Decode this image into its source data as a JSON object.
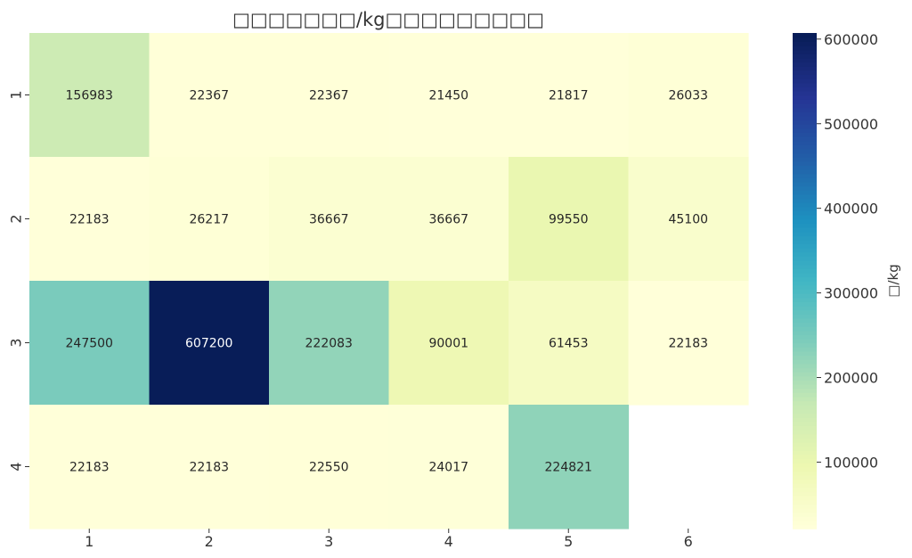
{
  "chart_data": {
    "type": "heatmap",
    "title": "□□□□□□□/kg□□□□□□□□□",
    "rows": [
      "1",
      "2",
      "3",
      "4"
    ],
    "columns": [
      "1",
      "2",
      "3",
      "4",
      "5",
      "6"
    ],
    "values": [
      [
        156983,
        22367,
        22367,
        21450,
        21817,
        26033
      ],
      [
        22183,
        26217,
        36667,
        36667,
        99550,
        45100
      ],
      [
        247500,
        607200,
        222083,
        90001,
        61453,
        22183
      ],
      [
        22183,
        22183,
        22550,
        24017,
        224821,
        null
      ]
    ],
    "colorbar": {
      "label": "□/kg",
      "ticks": [
        100000,
        200000,
        300000,
        400000,
        500000,
        600000
      ],
      "range": [
        21450,
        607200
      ],
      "colormap": "YlGnBu"
    }
  }
}
